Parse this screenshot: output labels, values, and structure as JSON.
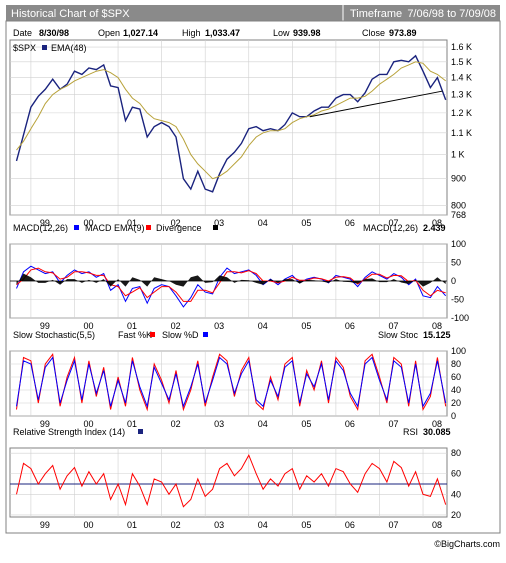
{
  "header": {
    "title": "Historical Chart of $SPX",
    "timeframe_label": "Timeframe",
    "timeframe_value": "7/06/98 to  7/09/08"
  },
  "info_bar": {
    "date_label": "Date",
    "date_value": "8/30/98",
    "open_label": "Open",
    "open_value": "1,027.14",
    "high_label": "High",
    "high_value": "1,033.47",
    "low_label": "Low",
    "low_value": "939.98",
    "close_label": "Close",
    "close_value": "973.89"
  },
  "footer": {
    "credit": "©BigCharts.com"
  },
  "colors": {
    "price": "#1a237e",
    "ema": "#b8a23a",
    "macd": "#0000ff",
    "macd_ema": "#ff0000",
    "divergence": "#000000",
    "fast_k": "#ff0000",
    "slow_d": "#0000ff",
    "rsi": "#ff0000",
    "rsi_ref": "#1a237e",
    "trendline": "#000000",
    "header_bg": "#8a8a8a",
    "panel_border": "#808080"
  },
  "chart_data": [
    {
      "type": "line",
      "legend": [
        "$SPX",
        "EMA(48)"
      ],
      "x_ticks": [
        "99",
        "00",
        "01",
        "02",
        "03",
        "04",
        "05",
        "06",
        "07",
        "08"
      ],
      "y_ticks": [
        "768",
        "800",
        "900",
        "1 K",
        "1.1 K",
        "1.2 K",
        "1.3 K",
        "1.4 K",
        "1.5 K",
        "1.6 K"
      ],
      "log_scale": true,
      "ylim": [
        768,
        1650
      ],
      "x": [
        1998.67,
        1998.83,
        1999.0,
        1999.17,
        1999.33,
        1999.5,
        1999.67,
        1999.83,
        2000.0,
        2000.17,
        2000.33,
        2000.5,
        2000.67,
        2000.83,
        2001.0,
        2001.17,
        2001.33,
        2001.5,
        2001.67,
        2001.83,
        2002.0,
        2002.17,
        2002.33,
        2002.5,
        2002.67,
        2002.83,
        2003.0,
        2003.17,
        2003.33,
        2003.5,
        2003.67,
        2003.83,
        2004.0,
        2004.17,
        2004.33,
        2004.5,
        2004.67,
        2004.83,
        2005.0,
        2005.17,
        2005.33,
        2005.5,
        2005.67,
        2005.83,
        2006.0,
        2006.17,
        2006.33,
        2006.5,
        2006.67,
        2006.83,
        2007.0,
        2007.17,
        2007.33,
        2007.5,
        2007.67,
        2007.83,
        2008.0,
        2008.17,
        2008.33,
        2008.52
      ],
      "series": [
        {
          "name": "$SPX",
          "values": [
            973,
            1090,
            1230,
            1290,
            1330,
            1390,
            1330,
            1360,
            1440,
            1420,
            1460,
            1450,
            1480,
            1350,
            1340,
            1160,
            1230,
            1220,
            1080,
            1130,
            1150,
            1130,
            1080,
            900,
            860,
            930,
            860,
            850,
            920,
            980,
            1010,
            1050,
            1120,
            1130,
            1110,
            1120,
            1110,
            1140,
            1200,
            1180,
            1180,
            1210,
            1230,
            1230,
            1280,
            1300,
            1300,
            1260,
            1310,
            1390,
            1420,
            1420,
            1500,
            1510,
            1500,
            1540,
            1440,
            1340,
            1400,
            1270
          ]
        },
        {
          "name": "EMA(48)",
          "values": [
            1020,
            1060,
            1120,
            1180,
            1250,
            1300,
            1330,
            1350,
            1380,
            1400,
            1420,
            1440,
            1450,
            1430,
            1400,
            1330,
            1280,
            1250,
            1200,
            1170,
            1160,
            1150,
            1130,
            1070,
            1000,
            960,
            930,
            900,
            910,
            930,
            960,
            990,
            1040,
            1080,
            1100,
            1110,
            1110,
            1120,
            1150,
            1170,
            1180,
            1190,
            1210,
            1220,
            1240,
            1260,
            1280,
            1280,
            1290,
            1320,
            1360,
            1390,
            1420,
            1460,
            1480,
            1500,
            1490,
            1440,
            1420,
            1380
          ]
        }
      ],
      "trendline": {
        "x": [
          2005.4,
          2008.45
        ],
        "values": [
          1180,
          1320
        ]
      }
    },
    {
      "type": "line",
      "legend": [
        "MACD(12,26)",
        "MACD EMA(9)",
        "Divergence"
      ],
      "readout_label": "MACD(12,26)",
      "readout_value": "2.439",
      "x_ticks": [
        "99",
        "00",
        "01",
        "02",
        "03",
        "04",
        "05",
        "06",
        "07",
        "08"
      ],
      "y_ticks": [
        "100",
        "50",
        "0",
        "-50",
        "-100"
      ],
      "ylim": [
        -100,
        100
      ],
      "x": [
        1998.67,
        1998.83,
        1999.0,
        1999.17,
        1999.33,
        1999.5,
        1999.67,
        1999.83,
        2000.0,
        2000.17,
        2000.33,
        2000.5,
        2000.67,
        2000.83,
        2001.0,
        2001.17,
        2001.33,
        2001.5,
        2001.67,
        2001.83,
        2002.0,
        2002.17,
        2002.33,
        2002.5,
        2002.67,
        2002.83,
        2003.0,
        2003.17,
        2003.33,
        2003.5,
        2003.67,
        2003.83,
        2004.0,
        2004.17,
        2004.33,
        2004.5,
        2004.67,
        2004.83,
        2005.0,
        2005.17,
        2005.33,
        2005.5,
        2005.67,
        2005.83,
        2006.0,
        2006.17,
        2006.33,
        2006.5,
        2006.67,
        2006.83,
        2007.0,
        2007.17,
        2007.33,
        2007.5,
        2007.67,
        2007.83,
        2008.0,
        2008.17,
        2008.33,
        2008.52
      ],
      "series": [
        {
          "name": "MACD(12,26)",
          "values": [
            -20,
            25,
            40,
            30,
            20,
            25,
            -5,
            15,
            30,
            20,
            25,
            10,
            20,
            -25,
            -10,
            -55,
            -20,
            -15,
            -60,
            -20,
            -10,
            -15,
            -40,
            -70,
            -45,
            -10,
            -30,
            -35,
            10,
            35,
            20,
            25,
            30,
            15,
            -10,
            5,
            -10,
            5,
            15,
            -5,
            5,
            10,
            5,
            -5,
            15,
            10,
            5,
            -15,
            10,
            25,
            15,
            5,
            20,
            10,
            -10,
            5,
            -40,
            -45,
            -15,
            -40
          ]
        },
        {
          "name": "MACD EMA(9)",
          "values": [
            -10,
            5,
            30,
            35,
            25,
            22,
            5,
            10,
            25,
            25,
            22,
            15,
            15,
            -10,
            -15,
            -40,
            -30,
            -18,
            -45,
            -30,
            -15,
            -15,
            -30,
            -55,
            -55,
            -25,
            -25,
            -32,
            -5,
            25,
            25,
            22,
            28,
            20,
            0,
            0,
            -5,
            0,
            10,
            2,
            2,
            8,
            6,
            0,
            10,
            12,
            8,
            -8,
            5,
            18,
            18,
            8,
            15,
            14,
            -2,
            2,
            -25,
            -40,
            -25,
            -32
          ]
        },
        {
          "name": "Divergence",
          "values": [
            -10,
            20,
            10,
            -5,
            -5,
            3,
            -10,
            5,
            5,
            -5,
            3,
            -5,
            5,
            -15,
            5,
            -15,
            10,
            3,
            -15,
            10,
            5,
            0,
            -10,
            -15,
            10,
            15,
            -5,
            -3,
            15,
            10,
            -5,
            3,
            2,
            -5,
            -10,
            5,
            -5,
            5,
            5,
            -7,
            3,
            2,
            -1,
            -5,
            5,
            -2,
            -3,
            -7,
            5,
            7,
            -3,
            -3,
            5,
            -4,
            -8,
            3,
            -15,
            -5,
            10,
            -8
          ]
        }
      ]
    },
    {
      "type": "line",
      "legend": [
        "Slow Stochastic(5,5)",
        "Fast %K",
        "Slow %D"
      ],
      "readout_label": "Slow Stoc",
      "readout_value": "15.125",
      "x_ticks": [
        "99",
        "00",
        "01",
        "02",
        "03",
        "04",
        "05",
        "06",
        "07",
        "08"
      ],
      "y_ticks": [
        "100",
        "80",
        "60",
        "40",
        "20",
        "0"
      ],
      "ylim": [
        0,
        100
      ],
      "x": [
        1998.67,
        1998.83,
        1999.0,
        1999.17,
        1999.33,
        1999.5,
        1999.67,
        1999.83,
        2000.0,
        2000.17,
        2000.33,
        2000.5,
        2000.67,
        2000.83,
        2001.0,
        2001.17,
        2001.33,
        2001.5,
        2001.67,
        2001.83,
        2002.0,
        2002.17,
        2002.33,
        2002.5,
        2002.67,
        2002.83,
        2003.0,
        2003.17,
        2003.33,
        2003.5,
        2003.67,
        2003.83,
        2004.0,
        2004.17,
        2004.33,
        2004.5,
        2004.67,
        2004.83,
        2005.0,
        2005.17,
        2005.33,
        2005.5,
        2005.67,
        2005.83,
        2006.0,
        2006.17,
        2006.33,
        2006.5,
        2006.67,
        2006.83,
        2007.0,
        2007.17,
        2007.33,
        2007.5,
        2007.67,
        2007.83,
        2008.0,
        2008.17,
        2008.33,
        2008.52
      ],
      "series": [
        {
          "name": "Fast %K",
          "values": [
            10,
            90,
            85,
            20,
            80,
            95,
            15,
            60,
            90,
            20,
            85,
            30,
            75,
            10,
            60,
            15,
            90,
            40,
            10,
            80,
            55,
            20,
            70,
            10,
            40,
            85,
            15,
            60,
            95,
            85,
            30,
            70,
            90,
            20,
            10,
            60,
            25,
            80,
            90,
            15,
            70,
            40,
            85,
            20,
            90,
            75,
            30,
            10,
            85,
            95,
            60,
            20,
            90,
            80,
            15,
            85,
            10,
            30,
            90,
            15
          ]
        },
        {
          "name": "Slow %D",
          "values": [
            15,
            85,
            80,
            25,
            75,
            90,
            20,
            55,
            85,
            25,
            80,
            35,
            70,
            15,
            55,
            20,
            85,
            45,
            15,
            75,
            50,
            25,
            65,
            15,
            45,
            80,
            20,
            55,
            90,
            80,
            35,
            65,
            85,
            25,
            15,
            55,
            30,
            75,
            85,
            20,
            65,
            45,
            80,
            25,
            85,
            70,
            35,
            15,
            80,
            90,
            55,
            25,
            85,
            75,
            20,
            80,
            15,
            35,
            85,
            20
          ]
        }
      ]
    },
    {
      "type": "line",
      "legend": [
        "Relative Strength Index (14)"
      ],
      "readout_label": "RSI",
      "readout_value": "30.085",
      "x_ticks": [
        "99",
        "00",
        "01",
        "02",
        "03",
        "04",
        "05",
        "06",
        "07",
        "08"
      ],
      "y_ticks": [
        "80",
        "60",
        "40",
        "20"
      ],
      "ylim": [
        18,
        85
      ],
      "reference_level": 50,
      "x": [
        1998.67,
        1998.83,
        1999.0,
        1999.17,
        1999.33,
        1999.5,
        1999.67,
        1999.83,
        2000.0,
        2000.17,
        2000.33,
        2000.5,
        2000.67,
        2000.83,
        2001.0,
        2001.17,
        2001.33,
        2001.5,
        2001.67,
        2001.83,
        2002.0,
        2002.17,
        2002.33,
        2002.5,
        2002.67,
        2002.83,
        2003.0,
        2003.17,
        2003.33,
        2003.5,
        2003.67,
        2003.83,
        2004.0,
        2004.17,
        2004.33,
        2004.5,
        2004.67,
        2004.83,
        2005.0,
        2005.17,
        2005.33,
        2005.5,
        2005.67,
        2005.83,
        2006.0,
        2006.17,
        2006.33,
        2006.5,
        2006.67,
        2006.83,
        2007.0,
        2007.17,
        2007.33,
        2007.5,
        2007.67,
        2007.83,
        2008.0,
        2008.17,
        2008.33,
        2008.52
      ],
      "series": [
        {
          "name": "RSI",
          "values": [
            40,
            70,
            65,
            50,
            60,
            68,
            45,
            58,
            66,
            48,
            62,
            50,
            60,
            35,
            50,
            30,
            60,
            48,
            30,
            55,
            52,
            40,
            50,
            28,
            35,
            55,
            38,
            45,
            65,
            70,
            58,
            65,
            78,
            60,
            45,
            55,
            48,
            60,
            65,
            45,
            58,
            52,
            60,
            48,
            65,
            62,
            50,
            42,
            60,
            70,
            65,
            52,
            72,
            66,
            48,
            62,
            40,
            38,
            55,
            30
          ]
        }
      ]
    }
  ]
}
